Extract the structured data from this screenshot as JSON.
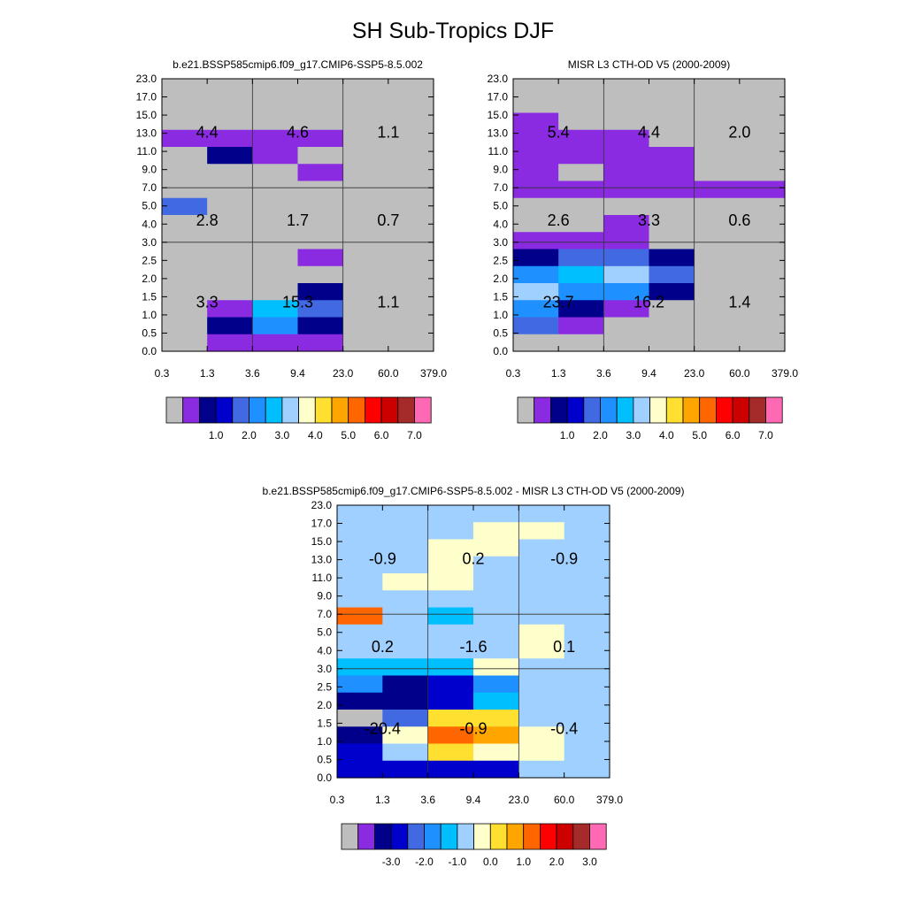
{
  "title": "SH Sub-Tropics DJF",
  "colors": {
    "gray": "#bebebe",
    "V": "#8a2be2",
    "N": "#00008b",
    "B": "#0000cd",
    "R": "#4169e1",
    "D": "#1e90ff",
    "S": "#00bfff",
    "L": "#a0d0ff",
    "Y": "#ffffcc",
    "G": "#ffe030",
    "O": "#ffa500",
    "T": "#ff6600",
    "Rd": "#ff0000",
    "M": "#cd0000",
    "Br": "#a52a2a",
    "P": "#ff69b4"
  },
  "colorbar_colors": [
    "#bebebe",
    "#8a2be2",
    "#00008b",
    "#0000cd",
    "#4169e1",
    "#1e90ff",
    "#00bfff",
    "#a0d0ff",
    "#ffffcc",
    "#ffe030",
    "#ffa500",
    "#ff6600",
    "#ff0000",
    "#cd0000",
    "#a52a2a",
    "#ff69b4"
  ],
  "chart_data": [
    {
      "type": "heatmap",
      "title": "b.e21.BSSP585cmip6.f09_g17.CMIP6-SSP5-8.5.002",
      "x_ticks": [
        "0.3",
        "1.3",
        "3.6",
        "9.4",
        "23.0",
        "60.0",
        "379.0"
      ],
      "y_ticks": [
        "0.0",
        "0.5",
        "1.0",
        "1.5",
        "2.0",
        "2.5",
        "3.0",
        "4.0",
        "5.0",
        "7.0",
        "9.0",
        "11.0",
        "13.0",
        "15.0",
        "17.0",
        "23.0"
      ],
      "cells": [
        "gggggg",
        "gggggg",
        "gggggg",
        "VVVVgg",
        "gNVggg",
        "gggVgg",
        "gggggg",
        "Rggggg",
        "gggggg",
        "gggggg",
        "gggVgg",
        "gggggg",
        "gggNgg",
        "gVSRgg",
        "gNDNgg",
        "gVVVgg"
      ],
      "group_labels": [
        [
          "4.4",
          "4.6",
          "1.1"
        ],
        [
          "2.8",
          "1.7",
          "0.7"
        ],
        [
          "3.3",
          "15.3",
          "1.1"
        ]
      ],
      "colorbar_labels": [
        "1.0",
        "2.0",
        "3.0",
        "4.0",
        "5.0",
        "6.0",
        "7.0"
      ]
    },
    {
      "type": "heatmap",
      "title": "MISR L3 CTH-OD V5 (2000-2009)",
      "x_ticks": [
        "0.3",
        "1.3",
        "3.6",
        "9.4",
        "23.0",
        "60.0",
        "379.0"
      ],
      "y_ticks": [
        "0.0",
        "0.5",
        "1.0",
        "1.5",
        "2.0",
        "2.5",
        "3.0",
        "4.0",
        "5.0",
        "7.0",
        "9.0",
        "11.0",
        "13.0",
        "15.0",
        "17.0",
        "23.0"
      ],
      "cells": [
        "gggggg",
        "gggggg",
        "Vggggg",
        "VVVggg",
        "VVVVgg",
        "VgVVgg",
        "VVVVVV",
        "gggggg",
        "ggVggg",
        "VVVggg",
        "NRRNgg",
        "DSLRgg",
        "LDDNgg",
        "DNVggg",
        "RVgggg",
        "gggggg"
      ],
      "group_labels": [
        [
          "5.4",
          "4.4",
          "2.0"
        ],
        [
          "2.6",
          "3.3",
          "0.6"
        ],
        [
          "23.7",
          "16.2",
          "1.4"
        ]
      ],
      "colorbar_labels": [
        "1.0",
        "2.0",
        "3.0",
        "4.0",
        "5.0",
        "6.0",
        "7.0"
      ]
    },
    {
      "type": "heatmap",
      "title": "b.e21.BSSP585cmip6.f09_g17.CMIP6-SSP5-8.5.002 - MISR L3 CTH-OD V5 (2000-2009)",
      "x_ticks": [
        "0.3",
        "1.3",
        "3.6",
        "9.4",
        "23.0",
        "60.0",
        "379.0"
      ],
      "y_ticks": [
        "0.0",
        "0.5",
        "1.0",
        "1.5",
        "2.0",
        "2.5",
        "3.0",
        "4.0",
        "5.0",
        "7.0",
        "9.0",
        "11.0",
        "13.0",
        "15.0",
        "17.0",
        "23.0"
      ],
      "cells": [
        "LLLLLL",
        "LLLYYL",
        "LLYYLL",
        "LLYLLL",
        "LYYLLL",
        "LLLLLL",
        "TLSLLL",
        "LLLLYL",
        "LLLLYL",
        "SSSYLL",
        "DNBDLL",
        "NNBSLL",
        "gRGGLL",
        "NYTOYL",
        "BLGYYL",
        "BBBBLL"
      ],
      "group_labels": [
        [
          "-0.9",
          "0.2",
          "-0.9"
        ],
        [
          "0.2",
          "-1.6",
          "0.1"
        ],
        [
          "-20.4",
          "-0.9",
          "-0.4"
        ]
      ],
      "colorbar_labels": [
        "-3.0",
        "-2.0",
        "-1.0",
        "0.0",
        "1.0",
        "2.0",
        "3.0"
      ]
    }
  ]
}
